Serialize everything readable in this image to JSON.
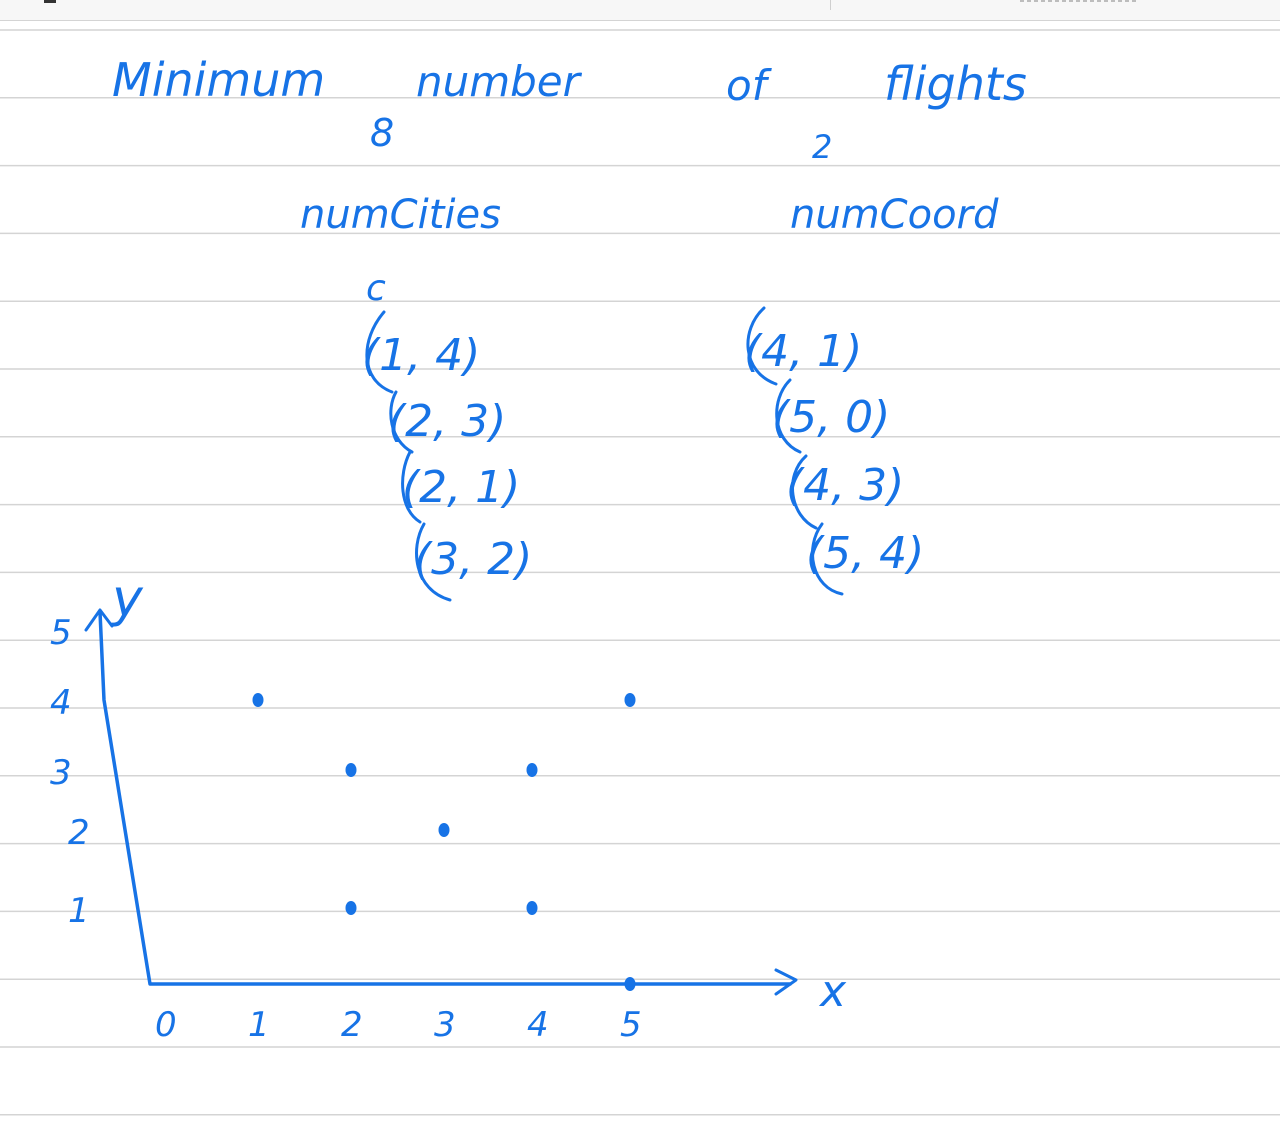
{
  "note": {
    "title_words": [
      "Minimum",
      "number",
      "of",
      "flights"
    ],
    "subscript_8": "8",
    "subscript_2": "2",
    "label_cities": "numCities",
    "label_cities_sub": "c",
    "label_coord": "numCoord"
  },
  "cities_pairs": [
    "(1, 4)",
    "(2, 3)",
    "(2, 1)",
    "(3, 2)"
  ],
  "coord_pairs": [
    "(4, 1)",
    "(5, 0)",
    "(4, 3)",
    "(5, 4)"
  ],
  "graph": {
    "y_axis_label": "y",
    "x_axis_label": "x",
    "y_ticks": [
      "1",
      "2",
      "3",
      "4",
      "5"
    ],
    "x_ticks": [
      "0",
      "1",
      "2",
      "3",
      "4",
      "5"
    ],
    "points": [
      {
        "x": 1,
        "y": 4
      },
      {
        "x": 2,
        "y": 3
      },
      {
        "x": 2,
        "y": 1
      },
      {
        "x": 3,
        "y": 2
      },
      {
        "x": 4,
        "y": 1
      },
      {
        "x": 5,
        "y": 0
      },
      {
        "x": 4,
        "y": 3
      },
      {
        "x": 5,
        "y": 4
      }
    ]
  },
  "colors": {
    "ink": "#1773e6",
    "rule": "#d4d4d4",
    "background": "#ffffff"
  }
}
